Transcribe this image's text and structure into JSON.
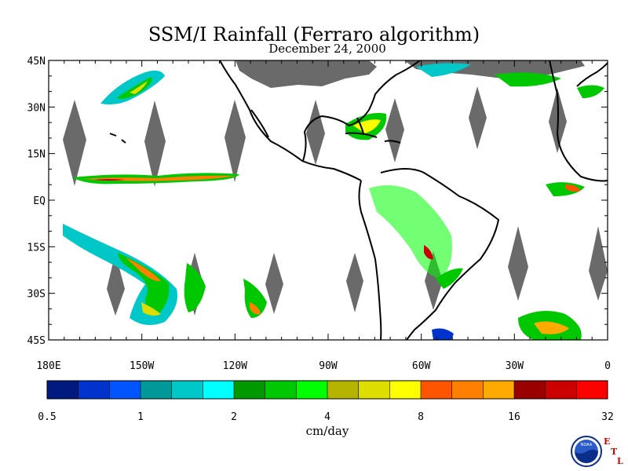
{
  "title": "SSM/I Rainfall (Ferraro algorithm)",
  "subtitle": "December 24, 2000",
  "map": {
    "lat_ticks": [
      "45N",
      "30N",
      "15N",
      "EQ",
      "15S",
      "30S",
      "45S"
    ],
    "lon_ticks": [
      "180E",
      "150W",
      "120W",
      "90W",
      "60W",
      "30W",
      "0"
    ],
    "lat_range": [
      -45,
      45
    ],
    "lon_range": [
      -180,
      0
    ],
    "no_data_color": "#6a6a6a",
    "coastline_color": "#000000"
  },
  "colorbar": {
    "unit": "cm/day",
    "tick_labels": [
      "0.5",
      "1",
      "2",
      "4",
      "8",
      "16",
      "32"
    ],
    "colors": [
      "#001a80",
      "#0033cc",
      "#0055ff",
      "#009999",
      "#00c8c8",
      "#00ffff",
      "#009900",
      "#00c800",
      "#00ff00",
      "#b3b300",
      "#dddd00",
      "#ffff00",
      "#ff5500",
      "#ff8000",
      "#ffaa00",
      "#990000",
      "#cc0000",
      "#ff0000"
    ]
  },
  "logo": {
    "noaa_text": "NOAA",
    "etl_letters": [
      "E",
      "T",
      "L"
    ]
  }
}
